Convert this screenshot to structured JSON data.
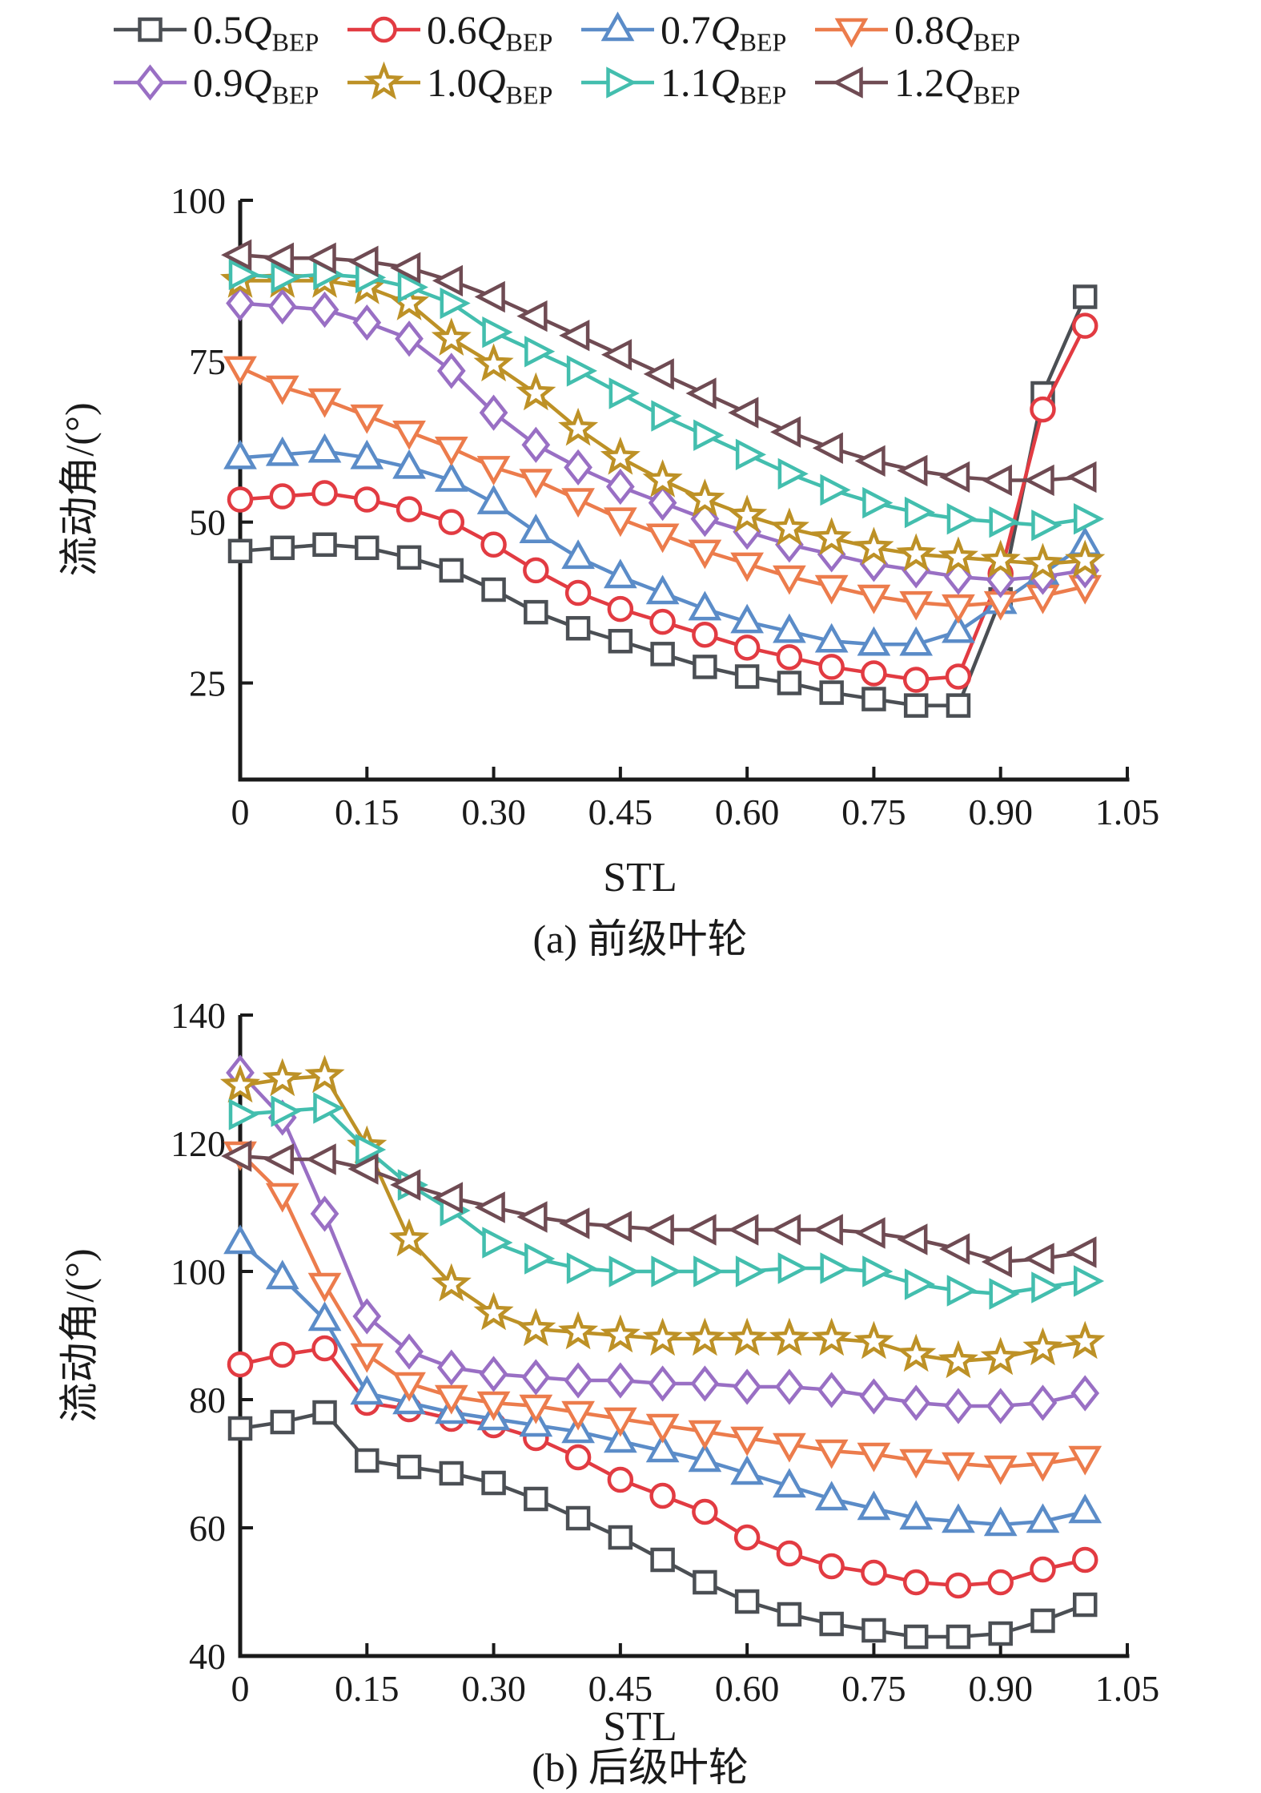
{
  "legend": {
    "position": "top",
    "items": [
      {
        "coef": "0.5",
        "symbol": "Q",
        "subscript": "BEP",
        "marker": "square",
        "color": "#4b4f54"
      },
      {
        "coef": "0.6",
        "symbol": "Q",
        "subscript": "BEP",
        "marker": "circle",
        "color": "#e23b42"
      },
      {
        "coef": "0.7",
        "symbol": "Q",
        "subscript": "BEP",
        "marker": "triangle-up",
        "color": "#5b8cc8"
      },
      {
        "coef": "0.8",
        "symbol": "Q",
        "subscript": "BEP",
        "marker": "triangle-down",
        "color": "#ec7c4c"
      },
      {
        "coef": "0.9",
        "symbol": "Q",
        "subscript": "BEP",
        "marker": "diamond",
        "color": "#996fc4"
      },
      {
        "coef": "1.0",
        "symbol": "Q",
        "subscript": "BEP",
        "marker": "star",
        "color": "#bd9126"
      },
      {
        "coef": "1.1",
        "symbol": "Q",
        "subscript": "BEP",
        "marker": "triangle-right",
        "color": "#43beae"
      },
      {
        "coef": "1.2",
        "symbol": "Q",
        "subscript": "BEP",
        "marker": "triangle-left",
        "color": "#6f4b53"
      }
    ]
  },
  "chart_data": [
    {
      "id": "a",
      "type": "line",
      "caption": "(a) 前级叶轮",
      "xlabel": "STL",
      "ylabel": "流动角/(°)",
      "xlim": [
        0,
        1.05
      ],
      "ylim": [
        10,
        100
      ],
      "grid": false,
      "x_ticks": [
        {
          "v": 0,
          "label": "0"
        },
        {
          "v": 0.15,
          "label": "0.15"
        },
        {
          "v": 0.3,
          "label": "0.30"
        },
        {
          "v": 0.45,
          "label": "0.45"
        },
        {
          "v": 0.6,
          "label": "0.60"
        },
        {
          "v": 0.75,
          "label": "0.75"
        },
        {
          "v": 0.9,
          "label": "0.90"
        },
        {
          "v": 1.05,
          "label": "1.05"
        }
      ],
      "y_ticks": [
        {
          "v": 25,
          "label": "25"
        },
        {
          "v": 50,
          "label": "50"
        },
        {
          "v": 75,
          "label": "75"
        },
        {
          "v": 100,
          "label": "100"
        }
      ],
      "x": [
        0,
        0.05,
        0.1,
        0.15,
        0.2,
        0.25,
        0.3,
        0.35,
        0.4,
        0.45,
        0.5,
        0.55,
        0.6,
        0.65,
        0.7,
        0.75,
        0.8,
        0.85,
        0.9,
        0.95,
        1.0
      ],
      "series": [
        {
          "name": "0.5Q_BEP",
          "marker": "square",
          "color": "#4b4f54",
          "y": [
            45.5,
            46,
            46.5,
            46,
            44.5,
            42.5,
            39.5,
            36,
            33.5,
            31.5,
            29.5,
            27.5,
            26,
            25,
            23.5,
            22.5,
            21.5,
            21.5,
            38,
            70,
            85
          ]
        },
        {
          "name": "0.6Q_BEP",
          "marker": "circle",
          "color": "#e23b42",
          "y": [
            53.5,
            54,
            54.5,
            53.5,
            52,
            50,
            46.5,
            42.5,
            39,
            36.5,
            34.5,
            32.5,
            30.5,
            29,
            27.5,
            26.5,
            25.5,
            26,
            42,
            67.5,
            80.5
          ]
        },
        {
          "name": "0.7Q_BEP",
          "marker": "triangle-up",
          "color": "#5b8cc8",
          "y": [
            60,
            60.5,
            61,
            60,
            58.5,
            56.5,
            53,
            48.5,
            44.5,
            41.5,
            39,
            36.5,
            34.5,
            33,
            31.5,
            31,
            31,
            33,
            37.5,
            42,
            46.5
          ]
        },
        {
          "name": "0.8Q_BEP",
          "marker": "triangle-down",
          "color": "#ec7c4c",
          "y": [
            74,
            71,
            69,
            66.5,
            64,
            61.5,
            58.5,
            56.5,
            53.5,
            50.5,
            48,
            45.5,
            43.5,
            41.5,
            40,
            38.5,
            37.5,
            37,
            37.5,
            38.5,
            40
          ]
        },
        {
          "name": "0.9Q_BEP",
          "marker": "diamond",
          "color": "#996fc4",
          "y": [
            84,
            83.5,
            83,
            81,
            78.5,
            73.5,
            67,
            62,
            58.5,
            55.5,
            53,
            50.5,
            48.5,
            46.5,
            45,
            43.5,
            42.5,
            41.5,
            41,
            41.5,
            42.5
          ]
        },
        {
          "name": "1.0Q_BEP",
          "marker": "star",
          "color": "#bd9126",
          "y": [
            87.5,
            87.5,
            87.5,
            86.5,
            84,
            78.5,
            74.5,
            70,
            64.5,
            60,
            56.5,
            53.5,
            51,
            49,
            47.5,
            46,
            45,
            44.5,
            44,
            43.5,
            44
          ]
        },
        {
          "name": "1.1Q_BEP",
          "marker": "triangle-right",
          "color": "#43beae",
          "y": [
            88.5,
            88,
            88.5,
            88,
            86.5,
            84,
            79.5,
            76.5,
            73.5,
            70,
            66.5,
            63.5,
            60.5,
            57.5,
            55,
            53,
            51.5,
            50.5,
            50,
            49.5,
            50.5
          ]
        },
        {
          "name": "1.2Q_BEP",
          "marker": "triangle-left",
          "color": "#6f4b53",
          "y": [
            91.5,
            91,
            91,
            90.5,
            89.5,
            87.5,
            85,
            82,
            79,
            76,
            73,
            70,
            67,
            64,
            61.5,
            59.5,
            58,
            57,
            56.5,
            56.5,
            57
          ]
        }
      ]
    },
    {
      "id": "b",
      "type": "line",
      "caption": "(b) 后级叶轮",
      "xlabel": "STL",
      "ylabel": "流动角/(°)",
      "xlim": [
        0,
        1.05
      ],
      "ylim": [
        40,
        140
      ],
      "grid": false,
      "x_ticks": [
        {
          "v": 0,
          "label": "0"
        },
        {
          "v": 0.15,
          "label": "0.15"
        },
        {
          "v": 0.3,
          "label": "0.30"
        },
        {
          "v": 0.45,
          "label": "0.45"
        },
        {
          "v": 0.6,
          "label": "0.60"
        },
        {
          "v": 0.75,
          "label": "0.75"
        },
        {
          "v": 0.9,
          "label": "0.90"
        },
        {
          "v": 1.05,
          "label": "1.05"
        }
      ],
      "y_ticks": [
        {
          "v": 40,
          "label": "40"
        },
        {
          "v": 60,
          "label": "60"
        },
        {
          "v": 80,
          "label": "80"
        },
        {
          "v": 100,
          "label": "100"
        },
        {
          "v": 120,
          "label": "120"
        },
        {
          "v": 140,
          "label": "140"
        }
      ],
      "x": [
        0,
        0.05,
        0.1,
        0.15,
        0.2,
        0.25,
        0.3,
        0.35,
        0.4,
        0.45,
        0.5,
        0.55,
        0.6,
        0.65,
        0.7,
        0.75,
        0.8,
        0.85,
        0.9,
        0.95,
        1.0
      ],
      "series": [
        {
          "name": "0.5Q_BEP",
          "marker": "square",
          "color": "#4b4f54",
          "y": [
            75.5,
            76.5,
            78,
            70.5,
            69.5,
            68.5,
            67,
            64.5,
            61.5,
            58.5,
            55,
            51.5,
            48.5,
            46.5,
            45,
            44,
            43,
            43,
            43.5,
            45.5,
            48
          ]
        },
        {
          "name": "0.6Q_BEP",
          "marker": "circle",
          "color": "#e23b42",
          "y": [
            85.5,
            87,
            88,
            79.5,
            78.5,
            77,
            76,
            74,
            71,
            67.5,
            65,
            62.5,
            58.5,
            56,
            54,
            53,
            51.5,
            51,
            51.5,
            53.5,
            55
          ]
        },
        {
          "name": "0.7Q_BEP",
          "marker": "triangle-up",
          "color": "#5b8cc8",
          "y": [
            104.5,
            99,
            92.5,
            81,
            79.5,
            78,
            77,
            76,
            75,
            73.5,
            72,
            70.5,
            68.5,
            66.5,
            64.5,
            63,
            61.5,
            61,
            60.5,
            61,
            62.5
          ]
        },
        {
          "name": "0.8Q_BEP",
          "marker": "triangle-down",
          "color": "#ec7c4c",
          "y": [
            118.5,
            112,
            98,
            87,
            82.5,
            80.5,
            79.5,
            79,
            78,
            77,
            76,
            75,
            74,
            73,
            72,
            71.5,
            70.5,
            70,
            69.5,
            70,
            71
          ]
        },
        {
          "name": "0.9Q_BEP",
          "marker": "diamond",
          "color": "#996fc4",
          "y": [
            131,
            124,
            109,
            93,
            87.5,
            85,
            84,
            83.5,
            83,
            83,
            82.5,
            82.5,
            82,
            82,
            81.5,
            80.5,
            79.5,
            79,
            79,
            79.5,
            81
          ]
        },
        {
          "name": "1.0Q_BEP",
          "marker": "star",
          "color": "#bd9126",
          "y": [
            129,
            130,
            130.5,
            119.5,
            105,
            98,
            93.5,
            91,
            90.5,
            90,
            89.5,
            89.5,
            89.5,
            89.5,
            89.5,
            89,
            87,
            86,
            86.5,
            88,
            89
          ]
        },
        {
          "name": "1.1Q_BEP",
          "marker": "triangle-right",
          "color": "#43beae",
          "y": [
            124.5,
            125,
            125.5,
            119,
            113.5,
            109.5,
            104.5,
            102,
            100.5,
            100,
            100,
            100,
            100,
            100.5,
            100.5,
            100,
            98,
            97,
            96.5,
            97.5,
            98.5
          ]
        },
        {
          "name": "1.2Q_BEP",
          "marker": "triangle-left",
          "color": "#6f4b53",
          "y": [
            118,
            117.5,
            117.5,
            116,
            113.5,
            111.5,
            110,
            108.5,
            107.5,
            107,
            106.5,
            106.5,
            106.5,
            106.5,
            106.5,
            106,
            105,
            103.5,
            101.5,
            102,
            103
          ]
        }
      ]
    }
  ]
}
